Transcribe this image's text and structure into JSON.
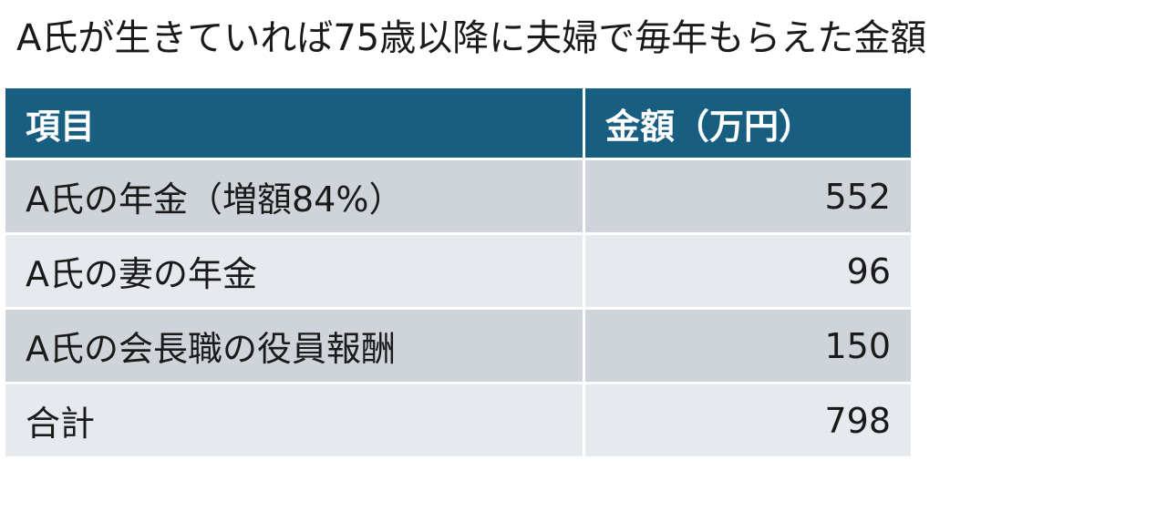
{
  "title": "A氏が生きていれば75歳以降に夫婦で毎年もらえた金額",
  "table": {
    "header": [
      "項目",
      "金額（万円）"
    ],
    "rows": [
      [
        "A氏の年金（増額84%）",
        552
      ],
      [
        "A氏の妻の年金",
        96
      ],
      [
        "A氏の会長職の役員報酬",
        150
      ],
      [
        "合計",
        798
      ]
    ]
  }
}
